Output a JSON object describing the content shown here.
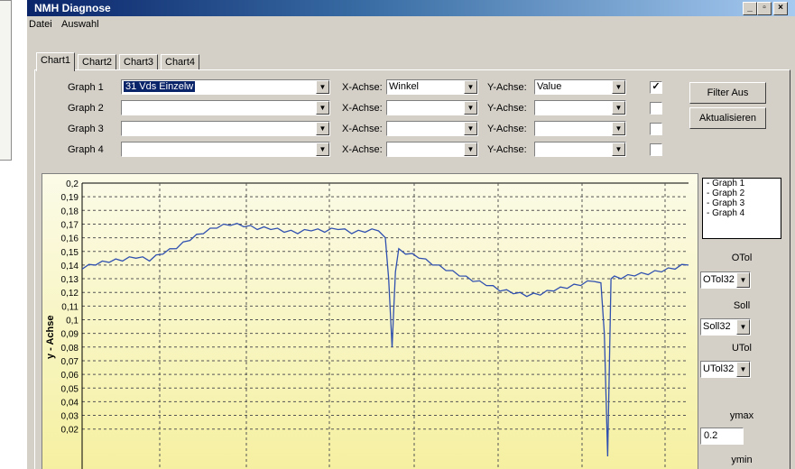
{
  "window": {
    "title": "NMH Diagnose",
    "controls": [
      "_",
      "д",
      "×"
    ]
  },
  "menu": [
    "Datei",
    "Auswahl"
  ],
  "tabs": [
    "Chart1",
    "Chart2",
    "Chart3",
    "Chart4"
  ],
  "graph_rows": [
    {
      "label": "Graph 1",
      "value": "31 Vds Einzelw",
      "x_label": "X-Achse:",
      "x_value": "Winkel",
      "y_label": "Y-Achse:",
      "y_value": "Value",
      "checked": "✓"
    },
    {
      "label": "Graph 2",
      "value": "",
      "x_label": "X-Achse:",
      "x_value": "",
      "y_label": "Y-Achse:",
      "y_value": "",
      "checked": ""
    },
    {
      "label": "Graph 3",
      "value": "",
      "x_label": "X-Achse:",
      "x_value": "",
      "y_label": "Y-Achse:",
      "y_value": "",
      "checked": ""
    },
    {
      "label": "Graph 4",
      "value": "",
      "x_label": "X-Achse:",
      "x_value": "",
      "y_label": "Y-Achse:",
      "y_value": "",
      "checked": ""
    }
  ],
  "buttons": {
    "filter": "Filter Aus",
    "refresh": "Aktualisieren"
  },
  "legend": [
    "- Graph 1",
    "- Graph 2",
    "- Graph 3",
    "- Graph 4"
  ],
  "side": {
    "otol_label": "OTol",
    "otol_value": "OTol32",
    "soll_label": "Soll",
    "soll_value": "Soll32",
    "utol_label": "UTol",
    "utol_value": "UTol32",
    "ymax_label": "ymax",
    "ymax_value": "0.2",
    "ymin_label": "ymin"
  },
  "colors": {
    "plot_bg_top": "#fbfbe8",
    "plot_bg_bottom": "#f5f0a0",
    "series": "#3050b0"
  },
  "chart_data": {
    "type": "line",
    "ylabel": "y - Achse",
    "ylim": [
      0.0,
      0.2
    ],
    "y_ticks": [
      "0,2",
      "0,19",
      "0,18",
      "0,17",
      "0,16",
      "0,15",
      "0,14",
      "0,13",
      "0,12",
      "0,11",
      "0,1",
      "0,09",
      "0,08",
      "0,07",
      "0,06",
      "0,05",
      "0,04",
      "0,03",
      "0,02"
    ],
    "grid": true,
    "series": [
      {
        "name": "Graph 1",
        "x": [
          0,
          4,
          8,
          12,
          16,
          20,
          24,
          28,
          32,
          36,
          40,
          44,
          48,
          52,
          56,
          60,
          64,
          68,
          72,
          76,
          80,
          84,
          88,
          90,
          91,
          92,
          93,
          94,
          95,
          96,
          100,
          104,
          108,
          112,
          116,
          120,
          124,
          128,
          132,
          136,
          140,
          144,
          148,
          152,
          154,
          155,
          156,
          157,
          158,
          160,
          164,
          168,
          172,
          176,
          180
        ],
        "y": [
          0.137,
          0.14,
          0.142,
          0.143,
          0.145,
          0.143,
          0.148,
          0.152,
          0.158,
          0.163,
          0.167,
          0.169,
          0.168,
          0.166,
          0.166,
          0.164,
          0.163,
          0.165,
          0.164,
          0.166,
          0.163,
          0.164,
          0.165,
          0.16,
          0.13,
          0.08,
          0.135,
          0.152,
          0.15,
          0.148,
          0.145,
          0.14,
          0.136,
          0.132,
          0.128,
          0.125,
          0.121,
          0.119,
          0.117,
          0.118,
          0.121,
          0.123,
          0.125,
          0.128,
          0.127,
          0.09,
          0.0,
          0.13,
          0.132,
          0.13,
          0.132,
          0.133,
          0.135,
          0.137,
          0.14
        ]
      }
    ]
  }
}
